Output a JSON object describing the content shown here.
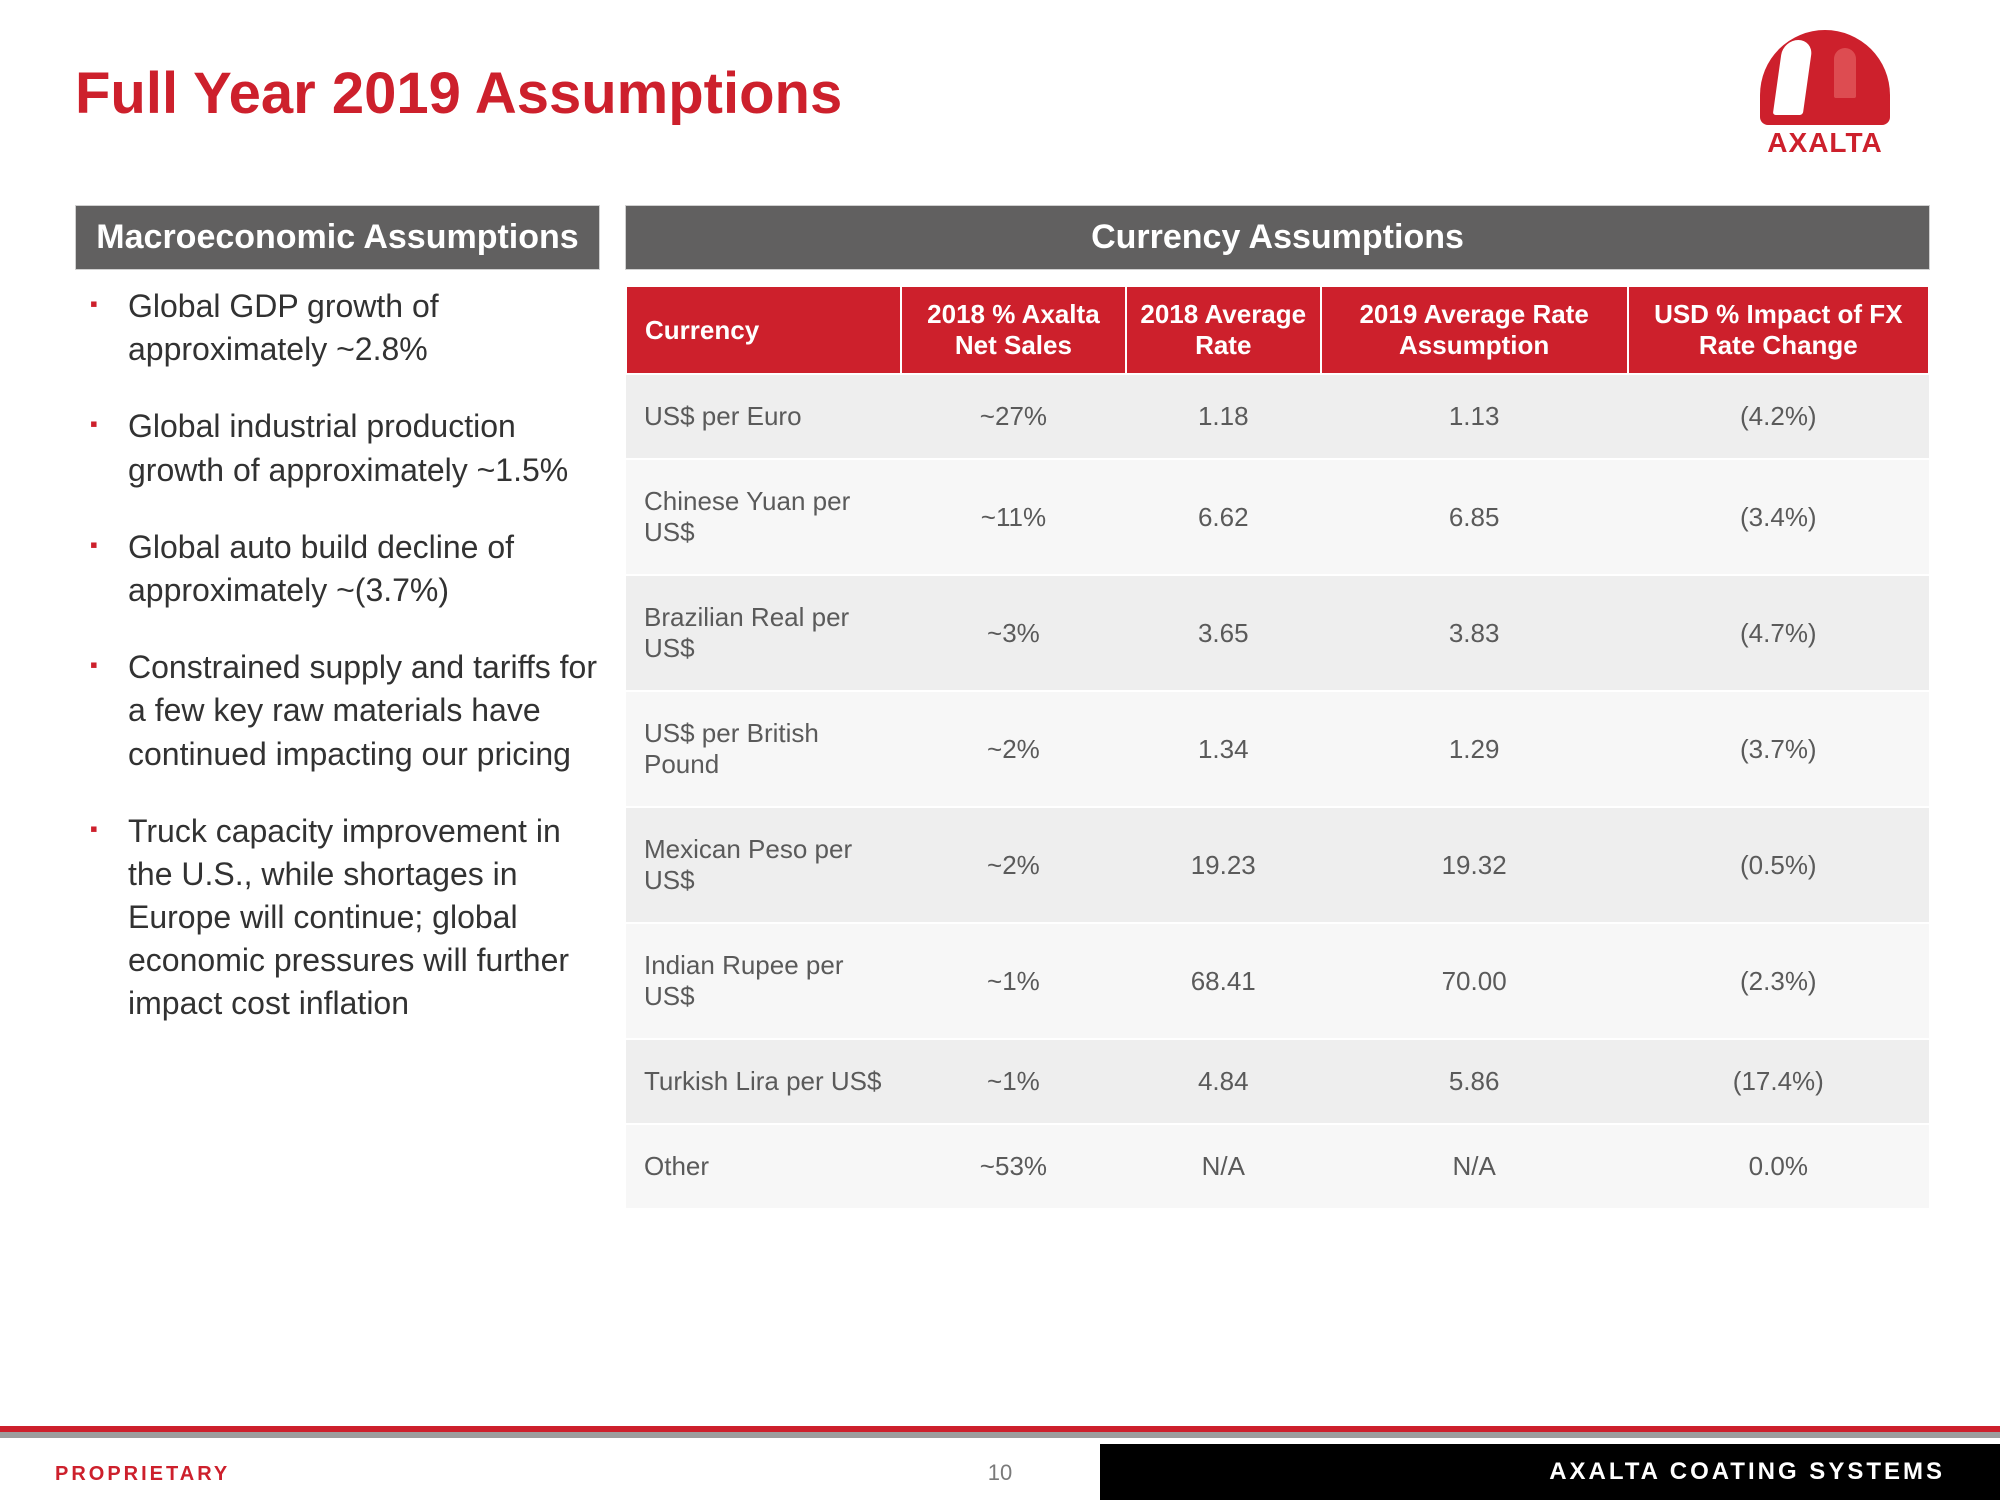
{
  "title": "Full Year 2019 Assumptions",
  "logo": {
    "brand": "AXALTA"
  },
  "sections": {
    "macro_label": "Macroeconomic Assumptions",
    "currency_label": "Currency Assumptions"
  },
  "macro_bullets": [
    "Global GDP growth of approximately ~2.8%",
    "Global industrial production growth of approximately ~1.5%",
    "Global auto build decline of approximately ~(3.7%)",
    "Constrained supply and tariffs for a few key raw materials have continued impacting our pricing",
    "Truck capacity improvement in the U.S., while shortages in Europe will continue; global economic pressures will further impact cost inflation"
  ],
  "currency_table": {
    "columns": [
      "Currency",
      "2018 % Axalta Net Sales",
      "2018 Average Rate",
      "2019 Average Rate Assumption",
      "USD % Impact of FX Rate Change"
    ],
    "rows": [
      [
        "US$ per Euro",
        "~27%",
        "1.18",
        "1.13",
        "(4.2%)"
      ],
      [
        "Chinese Yuan per US$",
        "~11%",
        "6.62",
        "6.85",
        "(3.4%)"
      ],
      [
        "Brazilian Real per US$",
        "~3%",
        "3.65",
        "3.83",
        "(4.7%)"
      ],
      [
        "US$ per British Pound",
        "~2%",
        "1.34",
        "1.29",
        "(3.7%)"
      ],
      [
        "Mexican Peso per US$",
        "~2%",
        "19.23",
        "19.32",
        "(0.5%)"
      ],
      [
        "Indian Rupee per US$",
        "~1%",
        "68.41",
        "70.00",
        "(2.3%)"
      ],
      [
        "Turkish Lira per US$",
        "~1%",
        "4.84",
        "5.86",
        "(17.4%)"
      ],
      [
        "Other",
        "~53%",
        "N/A",
        "N/A",
        "0.0%"
      ]
    ],
    "header_bg": "#cd202c",
    "header_color": "#ffffff",
    "row_odd_bg": "#eeeeee",
    "row_even_bg": "#f7f7f7",
    "text_color": "#5a5a5a",
    "font_size": 26
  },
  "footer": {
    "proprietary": "PROPRIETARY",
    "page": "10",
    "company": "AXALTA COATING SYSTEMS"
  },
  "colors": {
    "brand_red": "#cd202c",
    "section_gray": "#616060",
    "text": "#323232"
  }
}
